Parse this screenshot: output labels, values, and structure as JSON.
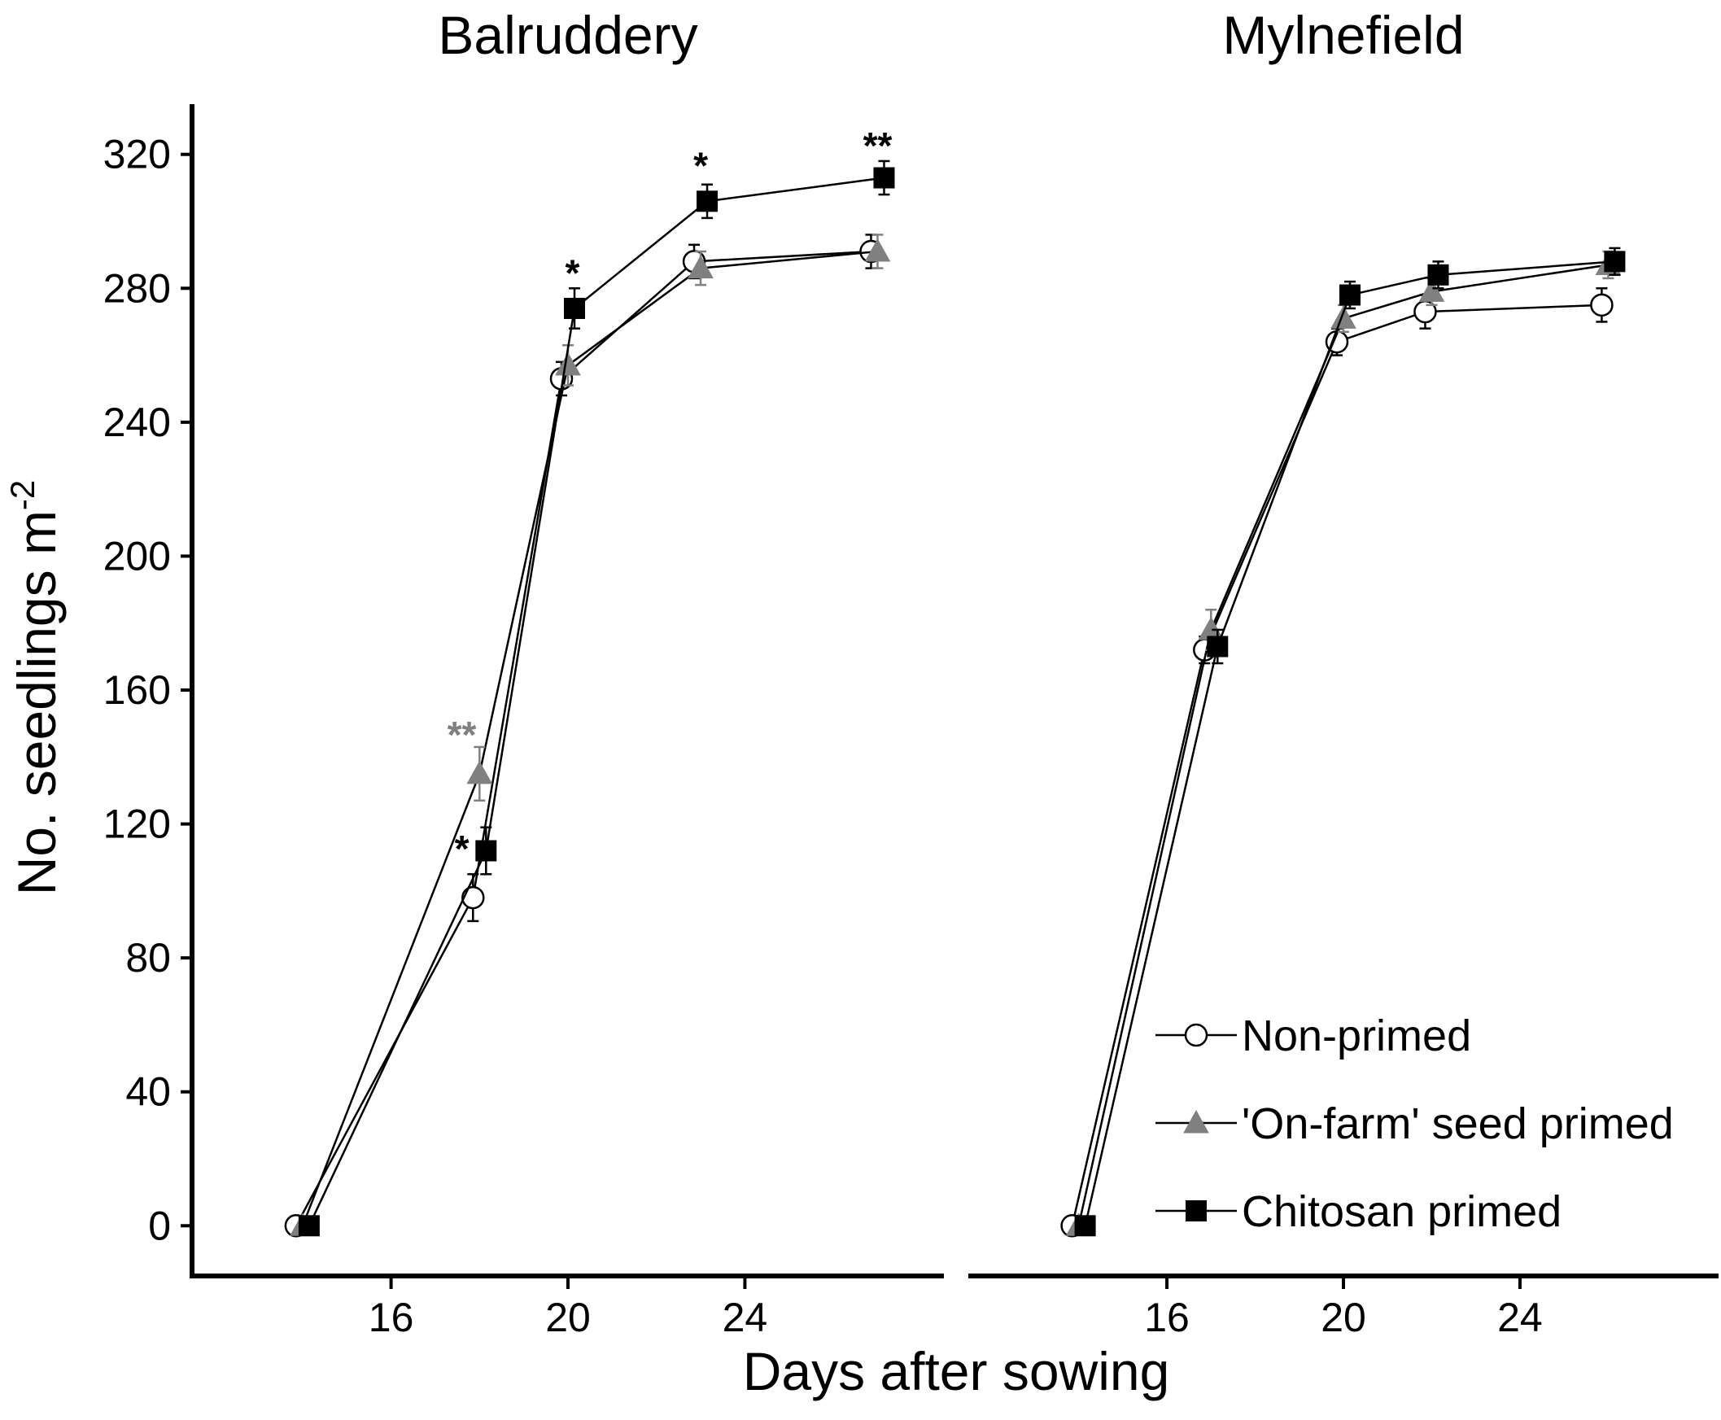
{
  "chart_data": {
    "type": "line",
    "xlabel": "Days after sowing",
    "ylabel": "No. seedlings m",
    "ylabel_superscript": "-2",
    "ylim": [
      -15,
      335
    ],
    "yticks": [
      0,
      40,
      80,
      120,
      160,
      200,
      240,
      280,
      320
    ],
    "xticks": [
      16,
      20,
      24
    ],
    "legend": {
      "position": "bottom-right",
      "entries": [
        {
          "name": "Non-primed",
          "marker": "open-circle",
          "color": "#000000"
        },
        {
          "name": "'On-farm' seed primed",
          "marker": "triangle",
          "color": "#808080"
        },
        {
          "name": "Chitosan primed",
          "marker": "square",
          "color": "#000000"
        }
      ]
    },
    "panels": [
      {
        "title": "Balruddery",
        "xlim": [
          11.5,
          28.5
        ],
        "series": [
          {
            "name": "Non-primed",
            "x": [
              14,
              18,
              20,
              23,
              27
            ],
            "y": [
              0,
              98,
              253,
              288,
              291
            ],
            "err": [
              0,
              7,
              5,
              5,
              5
            ]
          },
          {
            "name": "'On-farm' seed primed",
            "x": [
              14,
              18,
              20,
              23,
              27
            ],
            "y": [
              0,
              135,
              257,
              286,
              291
            ],
            "err": [
              0,
              8,
              6,
              5,
              5
            ]
          },
          {
            "name": "Chitosan primed",
            "x": [
              14,
              18,
              20,
              23,
              27
            ],
            "y": [
              0,
              112,
              274,
              306,
              313
            ],
            "err": [
              0,
              7,
              6,
              5,
              5
            ]
          }
        ],
        "annotations": [
          {
            "x": 17.6,
            "y": 150,
            "text": "**",
            "color": "#808080"
          },
          {
            "x": 17.6,
            "y": 116,
            "text": "*",
            "color": "#000000"
          },
          {
            "x": 20.1,
            "y": 288,
            "text": "*",
            "color": "#000000"
          },
          {
            "x": 23.0,
            "y": 320,
            "text": "*",
            "color": "#000000"
          },
          {
            "x": 27.0,
            "y": 326,
            "text": "**",
            "color": "#000000"
          }
        ]
      },
      {
        "title": "Mylnefield",
        "xlim": [
          11.5,
          28.5
        ],
        "series": [
          {
            "name": "Non-primed",
            "x": [
              14,
              17,
              20,
              22,
              26
            ],
            "y": [
              0,
              172,
              264,
              273,
              275
            ],
            "err": [
              0,
              4,
              4,
              5,
              5
            ]
          },
          {
            "name": "'On-farm' seed primed",
            "x": [
              14,
              17,
              20,
              22,
              26
            ],
            "y": [
              0,
              178,
              271,
              279,
              287
            ],
            "err": [
              0,
              6,
              4,
              4,
              4
            ]
          },
          {
            "name": "Chitosan primed",
            "x": [
              14,
              17,
              20,
              22,
              26
            ],
            "y": [
              0,
              173,
              278,
              284,
              288
            ],
            "err": [
              0,
              5,
              4,
              4,
              4
            ]
          }
        ],
        "annotations": []
      }
    ]
  }
}
